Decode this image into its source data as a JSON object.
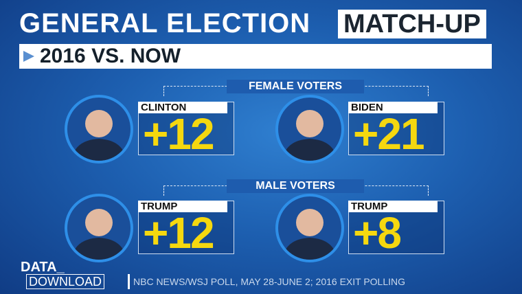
{
  "header": {
    "title": "GENERAL ELECTION",
    "title_highlight": "MATCH-UP",
    "subtitle": "2016 VS. NOW"
  },
  "groups": [
    {
      "label": "FEMALE VOTERS",
      "matchups": [
        {
          "candidate": "CLINTON",
          "margin": "+12"
        },
        {
          "candidate": "BIDEN",
          "margin": "+21"
        }
      ]
    },
    {
      "label": "MALE VOTERS",
      "matchups": [
        {
          "candidate": "TRUMP",
          "margin": "+12"
        },
        {
          "candidate": "TRUMP",
          "margin": "+8"
        }
      ]
    }
  ],
  "footer": {
    "brand_top": "DATA_",
    "brand_bottom": "DOWNLOAD",
    "source": "NBC NEWS/WSJ POLL, MAY 28-JUNE 2; 2016 EXIT POLLING"
  }
}
